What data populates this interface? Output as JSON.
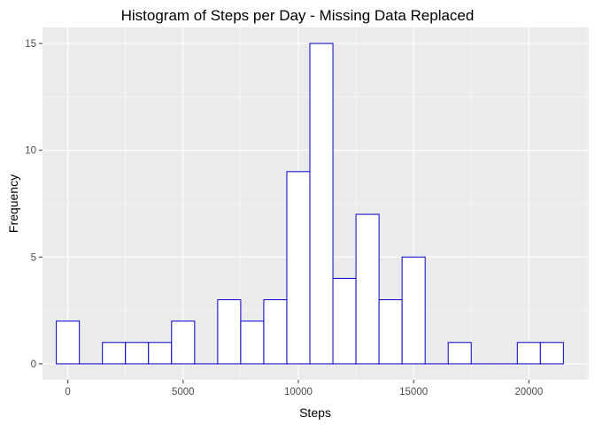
{
  "chart_data": {
    "type": "bar",
    "title": "Histogram of Steps per Day - Missing Data Replaced",
    "xlabel": "Steps",
    "ylabel": "Frequency",
    "bin_width": 1000,
    "bins": [
      {
        "center": 0,
        "count": 2
      },
      {
        "center": 1000,
        "count": 0
      },
      {
        "center": 2000,
        "count": 1
      },
      {
        "center": 3000,
        "count": 1
      },
      {
        "center": 4000,
        "count": 1
      },
      {
        "center": 5000,
        "count": 2
      },
      {
        "center": 6000,
        "count": 0
      },
      {
        "center": 7000,
        "count": 3
      },
      {
        "center": 8000,
        "count": 2
      },
      {
        "center": 9000,
        "count": 3
      },
      {
        "center": 10000,
        "count": 9
      },
      {
        "center": 11000,
        "count": 15
      },
      {
        "center": 12000,
        "count": 4
      },
      {
        "center": 13000,
        "count": 7
      },
      {
        "center": 14000,
        "count": 3
      },
      {
        "center": 15000,
        "count": 5
      },
      {
        "center": 16000,
        "count": 0
      },
      {
        "center": 17000,
        "count": 1
      },
      {
        "center": 18000,
        "count": 0
      },
      {
        "center": 19000,
        "count": 0
      },
      {
        "center": 20000,
        "count": 1
      },
      {
        "center": 21000,
        "count": 1
      }
    ],
    "xlim": [
      -1100,
      22600
    ],
    "ylim": [
      -0.75,
      15.75
    ],
    "x_ticks": [
      0,
      5000,
      10000,
      15000,
      20000
    ],
    "x_tick_labels": [
      "0",
      "5000",
      "10000",
      "15000",
      "20000"
    ],
    "y_ticks": [
      0,
      5,
      10,
      15
    ],
    "y_tick_labels": [
      "0",
      "5",
      "10",
      "15"
    ],
    "grid": true,
    "legend": "none",
    "colors": {
      "panel_background": "#ebebeb",
      "bar_fill": "#ffffff",
      "bar_outline": "#0000cc"
    }
  }
}
